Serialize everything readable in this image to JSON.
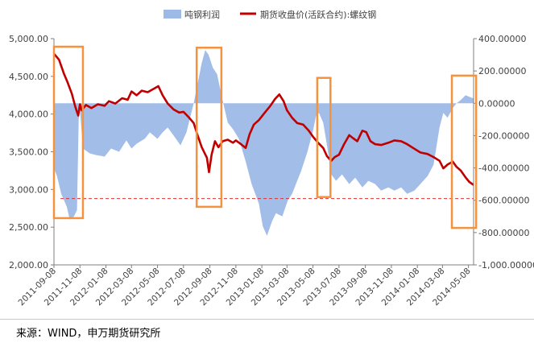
{
  "colors": {
    "profit_fill": "#9db9e6",
    "price_line": "#c00000",
    "highlight_box": "#f5923e",
    "reference_line": "#e03030",
    "axis_text": "#404040"
  },
  "legend": {
    "profit_label": "吨钢利润",
    "price_label": "期货收盘价(活跃合约):螺纹钢"
  },
  "source": "来源：WIND，申万期货研究所",
  "chart_data": {
    "type": "line",
    "x_start": "2011-09-08",
    "x_end": "2014-05-20",
    "x_ticks": [
      "2011-09-08",
      "2011-11-08",
      "2012-01-08",
      "2012-03-08",
      "2012-05-08",
      "2012-07-08",
      "2012-09-08",
      "2012-11-08",
      "2013-01-08",
      "2013-03-08",
      "2013-05-08",
      "2013-07-08",
      "2013-09-08",
      "2013-11-08",
      "2014-01-08",
      "2014-03-08",
      "2014-05-08"
    ],
    "y_left": {
      "min": 2000,
      "max": 5000,
      "ticks": [
        "2,000.00",
        "2,500.00",
        "3,000.00",
        "3,500.00",
        "4,000.00",
        "4,500.00",
        "5,000.00"
      ]
    },
    "y_right": {
      "min": -1000,
      "max": 400,
      "ticks": [
        "-1,000.00000",
        "-800.00000",
        "-600.00000",
        "-400.00000",
        "-200.00000",
        "0.00000",
        "200.00000",
        "400.00000"
      ]
    },
    "series": [
      {
        "name": "期货收盘价(活跃合约):螺纹钢",
        "axis": "left",
        "kind": "line",
        "points": [
          [
            "2011-09-08",
            4800
          ],
          [
            "2011-09-20",
            4720
          ],
          [
            "2011-10-01",
            4540
          ],
          [
            "2011-10-10",
            4420
          ],
          [
            "2011-10-20",
            4270
          ],
          [
            "2011-10-28",
            4100
          ],
          [
            "2011-11-04",
            3980
          ],
          [
            "2011-11-08",
            4130
          ],
          [
            "2011-11-12",
            4050
          ],
          [
            "2011-11-22",
            4120
          ],
          [
            "2011-12-05",
            4080
          ],
          [
            "2011-12-20",
            4130
          ],
          [
            "2012-01-05",
            4110
          ],
          [
            "2012-01-15",
            4170
          ],
          [
            "2012-01-30",
            4140
          ],
          [
            "2012-02-15",
            4210
          ],
          [
            "2012-02-28",
            4190
          ],
          [
            "2012-03-08",
            4300
          ],
          [
            "2012-03-20",
            4250
          ],
          [
            "2012-04-01",
            4310
          ],
          [
            "2012-04-15",
            4290
          ],
          [
            "2012-05-01",
            4340
          ],
          [
            "2012-05-10",
            4370
          ],
          [
            "2012-05-20",
            4250
          ],
          [
            "2012-06-01",
            4140
          ],
          [
            "2012-06-15",
            4060
          ],
          [
            "2012-06-28",
            4020
          ],
          [
            "2012-07-08",
            4030
          ],
          [
            "2012-07-20",
            3960
          ],
          [
            "2012-08-01",
            3880
          ],
          [
            "2012-08-10",
            3720
          ],
          [
            "2012-08-20",
            3560
          ],
          [
            "2012-09-01",
            3420
          ],
          [
            "2012-09-06",
            3230
          ],
          [
            "2012-09-12",
            3460
          ],
          [
            "2012-09-20",
            3640
          ],
          [
            "2012-09-28",
            3560
          ],
          [
            "2012-10-08",
            3640
          ],
          [
            "2012-10-20",
            3660
          ],
          [
            "2012-11-01",
            3620
          ],
          [
            "2012-11-08",
            3650
          ],
          [
            "2012-11-20",
            3600
          ],
          [
            "2012-12-01",
            3550
          ],
          [
            "2012-12-10",
            3730
          ],
          [
            "2012-12-20",
            3860
          ],
          [
            "2013-01-01",
            3920
          ],
          [
            "2013-01-15",
            4020
          ],
          [
            "2013-01-28",
            4110
          ],
          [
            "2013-02-08",
            4200
          ],
          [
            "2013-02-18",
            4260
          ],
          [
            "2013-02-28",
            4170
          ],
          [
            "2013-03-08",
            4050
          ],
          [
            "2013-03-20",
            3950
          ],
          [
            "2013-04-01",
            3880
          ],
          [
            "2013-04-15",
            3860
          ],
          [
            "2013-04-28",
            3780
          ],
          [
            "2013-05-08",
            3700
          ],
          [
            "2013-05-20",
            3620
          ],
          [
            "2013-06-01",
            3550
          ],
          [
            "2013-06-10",
            3440
          ],
          [
            "2013-06-20",
            3380
          ],
          [
            "2013-06-28",
            3430
          ],
          [
            "2013-07-08",
            3460
          ],
          [
            "2013-07-20",
            3600
          ],
          [
            "2013-08-01",
            3720
          ],
          [
            "2013-08-10",
            3680
          ],
          [
            "2013-08-20",
            3640
          ],
          [
            "2013-09-01",
            3780
          ],
          [
            "2013-09-10",
            3760
          ],
          [
            "2013-09-20",
            3640
          ],
          [
            "2013-10-01",
            3600
          ],
          [
            "2013-10-15",
            3590
          ],
          [
            "2013-11-01",
            3620
          ],
          [
            "2013-11-15",
            3650
          ],
          [
            "2013-12-01",
            3640
          ],
          [
            "2013-12-15",
            3600
          ],
          [
            "2014-01-01",
            3540
          ],
          [
            "2014-01-15",
            3490
          ],
          [
            "2014-02-01",
            3470
          ],
          [
            "2014-02-15",
            3430
          ],
          [
            "2014-03-01",
            3380
          ],
          [
            "2014-03-10",
            3280
          ],
          [
            "2014-03-20",
            3330
          ],
          [
            "2014-04-01",
            3370
          ],
          [
            "2014-04-10",
            3300
          ],
          [
            "2014-04-20",
            3250
          ],
          [
            "2014-05-01",
            3160
          ],
          [
            "2014-05-10",
            3100
          ],
          [
            "2014-05-20",
            3060
          ]
        ]
      },
      {
        "name": "吨钢利润",
        "axis": "right",
        "kind": "area",
        "baseline": 0,
        "points": [
          [
            "2011-09-08",
            -400
          ],
          [
            "2011-09-15",
            -450
          ],
          [
            "2011-09-25",
            -560
          ],
          [
            "2011-10-08",
            -640
          ],
          [
            "2011-10-15",
            -720
          ],
          [
            "2011-10-25",
            -700
          ],
          [
            "2011-11-01",
            -660
          ],
          [
            "2011-11-05",
            -100
          ],
          [
            "2011-11-08",
            -40
          ],
          [
            "2011-11-15",
            -280
          ],
          [
            "2011-12-01",
            -310
          ],
          [
            "2011-12-15",
            -320
          ],
          [
            "2012-01-05",
            -330
          ],
          [
            "2012-01-20",
            -280
          ],
          [
            "2012-02-08",
            -300
          ],
          [
            "2012-02-25",
            -230
          ],
          [
            "2012-03-08",
            -280
          ],
          [
            "2012-03-20",
            -250
          ],
          [
            "2012-04-08",
            -220
          ],
          [
            "2012-04-20",
            -180
          ],
          [
            "2012-05-08",
            -220
          ],
          [
            "2012-05-20",
            -180
          ],
          [
            "2012-06-01",
            -150
          ],
          [
            "2012-06-15",
            -200
          ],
          [
            "2012-07-01",
            -260
          ],
          [
            "2012-07-15",
            -180
          ],
          [
            "2012-08-01",
            0
          ],
          [
            "2012-08-10",
            120
          ],
          [
            "2012-08-20",
            250
          ],
          [
            "2012-08-28",
            330
          ],
          [
            "2012-09-05",
            300
          ],
          [
            "2012-09-15",
            220
          ],
          [
            "2012-09-25",
            180
          ],
          [
            "2012-10-05",
            50
          ],
          [
            "2012-10-20",
            -120
          ],
          [
            "2012-11-01",
            -160
          ],
          [
            "2012-11-15",
            -220
          ],
          [
            "2012-12-01",
            -360
          ],
          [
            "2012-12-15",
            -500
          ],
          [
            "2013-01-01",
            -620
          ],
          [
            "2013-01-10",
            -760
          ],
          [
            "2013-01-20",
            -820
          ],
          [
            "2013-02-01",
            -730
          ],
          [
            "2013-02-10",
            -680
          ],
          [
            "2013-02-25",
            -700
          ],
          [
            "2013-03-10",
            -600
          ],
          [
            "2013-03-20",
            -560
          ],
          [
            "2013-04-01",
            -480
          ],
          [
            "2013-04-10",
            -420
          ],
          [
            "2013-04-25",
            -300
          ],
          [
            "2013-05-08",
            -170
          ],
          [
            "2013-05-15",
            -80
          ],
          [
            "2013-05-22",
            -60
          ],
          [
            "2013-06-01",
            -120
          ],
          [
            "2013-06-10",
            -260
          ],
          [
            "2013-06-20",
            -440
          ],
          [
            "2013-07-01",
            -480
          ],
          [
            "2013-07-15",
            -440
          ],
          [
            "2013-08-01",
            -500
          ],
          [
            "2013-08-15",
            -460
          ],
          [
            "2013-09-01",
            -520
          ],
          [
            "2013-09-15",
            -480
          ],
          [
            "2013-10-01",
            -500
          ],
          [
            "2013-10-15",
            -540
          ],
          [
            "2013-11-01",
            -520
          ],
          [
            "2013-11-15",
            -540
          ],
          [
            "2013-12-01",
            -520
          ],
          [
            "2013-12-15",
            -560
          ],
          [
            "2014-01-01",
            -540
          ],
          [
            "2014-01-15",
            -500
          ],
          [
            "2014-02-01",
            -450
          ],
          [
            "2014-02-15",
            -380
          ],
          [
            "2014-03-01",
            -150
          ],
          [
            "2014-03-10",
            -60
          ],
          [
            "2014-03-20",
            -90
          ],
          [
            "2014-04-01",
            -30
          ],
          [
            "2014-04-10",
            0
          ],
          [
            "2014-04-20",
            20
          ],
          [
            "2014-05-01",
            50
          ],
          [
            "2014-05-10",
            40
          ],
          [
            "2014-05-20",
            30
          ]
        ]
      }
    ],
    "reference_line": {
      "axis": "left",
      "value": 2880
    },
    "highlight_periods": [
      {
        "from": "2011-09-08",
        "to": "2011-11-15"
      },
      {
        "from": "2012-08-08",
        "to": "2012-10-05"
      },
      {
        "from": "2013-05-18",
        "to": "2013-06-18"
      },
      {
        "from": "2014-03-30",
        "to": "2014-05-26"
      }
    ],
    "grid": false,
    "legend_position": "top"
  }
}
